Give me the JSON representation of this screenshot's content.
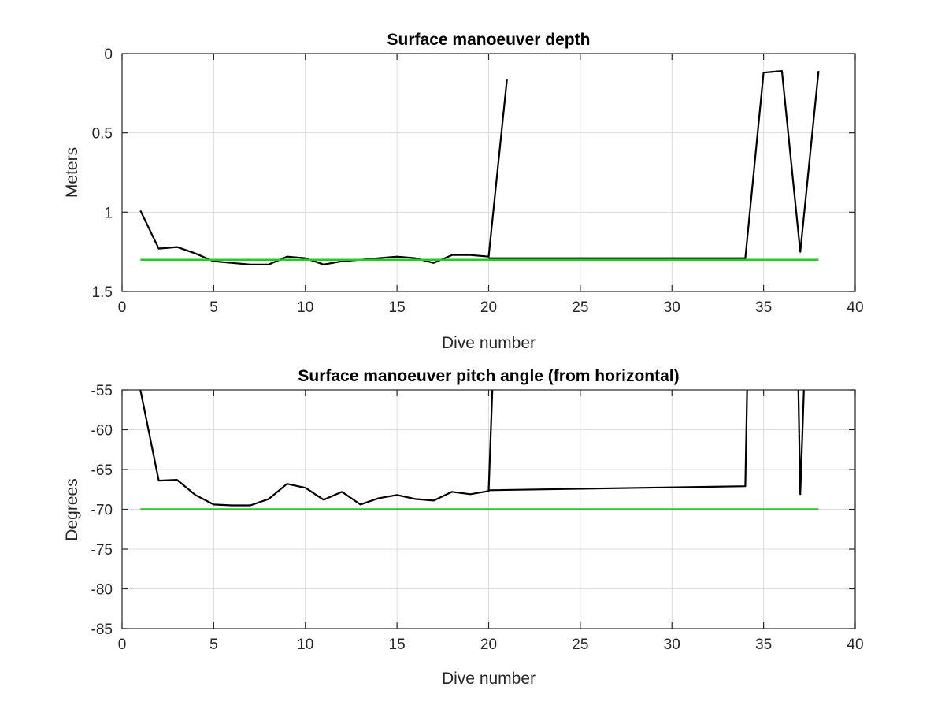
{
  "chart_data": [
    {
      "type": "line",
      "title": "Surface manoeuver depth",
      "xlabel": "Dive number",
      "ylabel": "Meters",
      "xlim": [
        0,
        40
      ],
      "ylim": [
        0,
        1.5
      ],
      "y_reversed": true,
      "grid": true,
      "xticks": [
        0,
        5,
        10,
        15,
        20,
        25,
        30,
        35,
        40
      ],
      "xtick_labels": [
        "0",
        "5",
        "10",
        "15",
        "20",
        "25",
        "30",
        "35",
        "40"
      ],
      "yticks": [
        0,
        0.5,
        1,
        1.5
      ],
      "ytick_labels": [
        "0",
        "0.5",
        "1",
        "1.5"
      ],
      "series": [
        {
          "color": "#000000",
          "segments": [
            {
              "x": [
                1,
                2,
                3,
                4,
                5,
                6,
                7,
                8,
                9,
                10,
                11,
                12,
                13,
                14,
                15,
                16,
                17,
                18,
                19,
                20,
                21
              ],
              "y": [
                0.99,
                1.23,
                1.22,
                1.26,
                1.31,
                1.32,
                1.33,
                1.33,
                1.28,
                1.29,
                1.33,
                1.31,
                1.3,
                1.29,
                1.28,
                1.29,
                1.32,
                1.27,
                1.27,
                1.28,
                0.16
              ]
            },
            {
              "x": [
                20,
                34,
                35,
                36,
                37,
                38
              ],
              "y": [
                1.29,
                1.29,
                0.12,
                0.11,
                1.25,
                0.11
              ]
            }
          ]
        },
        {
          "color": "#22cc22",
          "x": [
            1,
            38
          ],
          "y": [
            1.3,
            1.3
          ]
        }
      ]
    },
    {
      "type": "line",
      "title": "Surface manoeuver pitch angle (from horizontal)",
      "xlabel": "Dive number",
      "ylabel": "Degrees",
      "xlim": [
        0,
        40
      ],
      "ylim": [
        -85,
        -55
      ],
      "grid": true,
      "xticks": [
        0,
        5,
        10,
        15,
        20,
        25,
        30,
        35,
        40
      ],
      "xtick_labels": [
        "0",
        "5",
        "10",
        "15",
        "20",
        "25",
        "30",
        "35",
        "40"
      ],
      "yticks": [
        -55,
        -60,
        -65,
        -70,
        -75,
        -80,
        -85
      ],
      "ytick_labels": [
        "-55",
        "-60",
        "-65",
        "-70",
        "-75",
        "-80",
        "-85"
      ],
      "series": [
        {
          "color": "#000000",
          "segments": [
            {
              "x": [
                1,
                2,
                3,
                4,
                5,
                6,
                7,
                8,
                9,
                10,
                11,
                12,
                13,
                14,
                15,
                16,
                17,
                18,
                19,
                20,
                20.2
              ],
              "y": [
                -55,
                -66.4,
                -66.3,
                -68.2,
                -69.4,
                -69.5,
                -69.5,
                -68.7,
                -66.8,
                -67.3,
                -68.8,
                -67.8,
                -69.4,
                -68.6,
                -68.2,
                -68.7,
                -68.9,
                -67.8,
                -68.1,
                -67.7,
                -55
              ]
            },
            {
              "x": [
                20,
                34,
                34.1
              ],
              "y": [
                -67.6,
                -67.1,
                -55
              ]
            },
            {
              "x": [
                36.9,
                37,
                37.2
              ],
              "y": [
                -55,
                -68.1,
                -55
              ]
            }
          ]
        },
        {
          "color": "#22cc22",
          "x": [
            1,
            38
          ],
          "y": [
            -70,
            -70
          ]
        }
      ]
    }
  ]
}
